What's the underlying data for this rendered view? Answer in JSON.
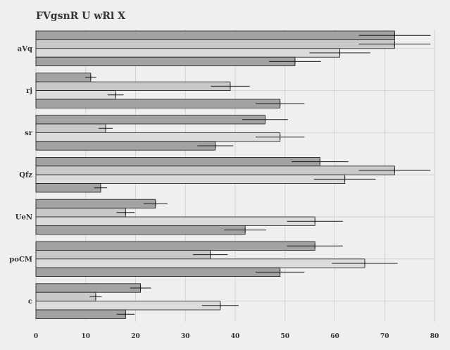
{
  "chart_data": {
    "type": "bar",
    "orientation": "horizontal",
    "title": "FVgsnR U wRl X",
    "xlabel": "",
    "ylabel": "",
    "xlim": [
      0,
      80
    ],
    "xticks": [
      0,
      10,
      20,
      30,
      40,
      50,
      60,
      70,
      80
    ],
    "grid": true,
    "categories": [
      "aVq",
      "rj",
      "sr",
      "Qfz",
      "UeN",
      "poCM",
      "c"
    ],
    "series": [
      {
        "values": [
          72,
          11,
          46,
          57,
          24,
          56,
          21
        ],
        "errors": [
          7.2,
          1.1,
          4.6,
          5.7,
          2.4,
          5.6,
          2.1
        ],
        "color": "#a3a3a3"
      },
      {
        "values": [
          72,
          39,
          14,
          72,
          18,
          35,
          12
        ],
        "errors": [
          7.2,
          3.9,
          1.4,
          7.2,
          1.8,
          3.5,
          1.2
        ],
        "color": "#c9c9c9"
      },
      {
        "values": [
          61,
          16,
          49,
          62,
          56,
          66,
          37
        ],
        "errors": [
          6.1,
          1.6,
          4.9,
          6.2,
          5.6,
          6.6,
          3.7
        ],
        "color": "#dcdcdc"
      },
      {
        "values": [
          52,
          49,
          36,
          13,
          42,
          49,
          18
        ],
        "errors": [
          5.2,
          4.9,
          3.6,
          1.3,
          4.2,
          4.9,
          1.8
        ],
        "color": "#a3a3a3"
      }
    ]
  }
}
